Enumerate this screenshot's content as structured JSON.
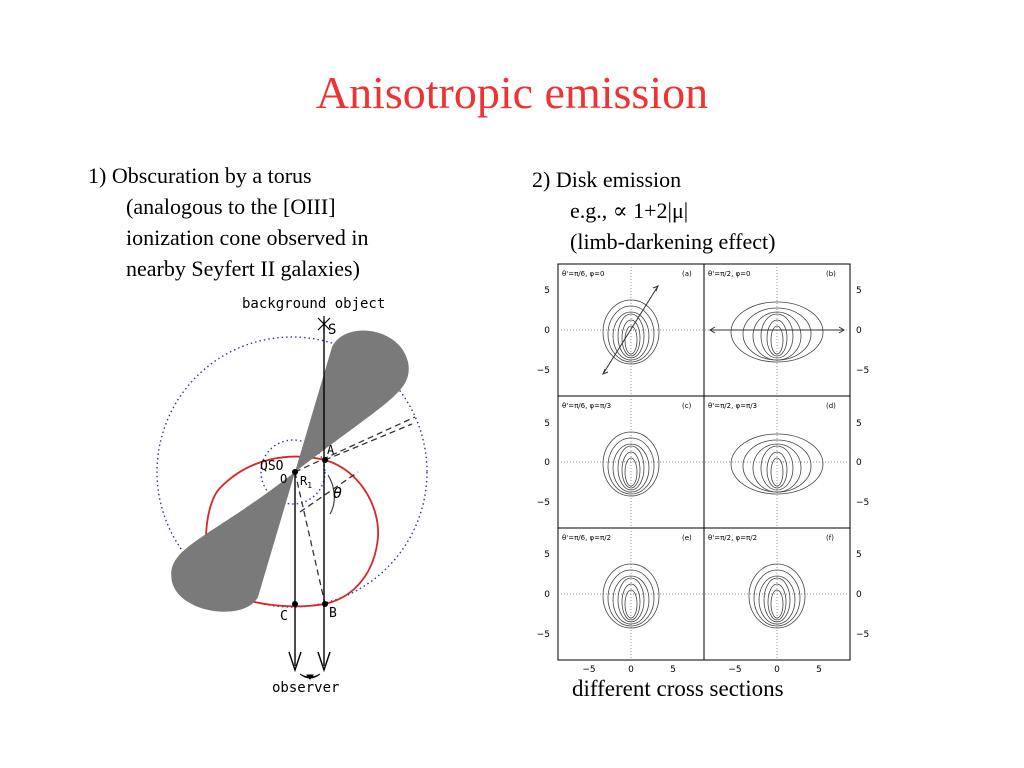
{
  "slide": {
    "title": "Anisotropic emission",
    "left": {
      "line1": "1) Obscuration by a torus",
      "line2": "(analogous to the [OIII]",
      "line3": "ionization cone observed in",
      "line4": "nearby Seyfert II galaxies)"
    },
    "right": {
      "line1": "2) Disk emission",
      "line2": "e.g., ∝ 1+2|μ|",
      "line3": "(limb-darkening effect)"
    },
    "caption": "different cross sections"
  },
  "diagram": {
    "label_background": "background object",
    "label_observer": "observer",
    "label_S": "S",
    "label_QSO": "QSO",
    "label_O": "O",
    "label_A": "A",
    "label_R1": "R",
    "label_R1_sub": "1",
    "label_theta": "θ",
    "label_B": "B",
    "label_C": "C",
    "colors": {
      "cone": "#7a7a7a",
      "curve": "#dd2222",
      "circle": "#3333bb"
    }
  },
  "panels": {
    "a": {
      "label": "θ'=π/6, φ=0",
      "tag": "(a)"
    },
    "b": {
      "label": "θ'=π/2, φ=0",
      "tag": "(b)"
    },
    "c": {
      "label": "θ'=π/6, φ=π/3",
      "tag": "(c)"
    },
    "d": {
      "label": "θ'=π/2, φ=π/3",
      "tag": "(d)"
    },
    "e": {
      "label": "θ'=π/6, φ=π/2",
      "tag": "(e)"
    },
    "f": {
      "label": "θ'=π/2, φ=π/2",
      "tag": "(f)"
    },
    "y_ticks": [
      "5",
      "0",
      "−5"
    ],
    "x_ticks": [
      "−5",
      "0",
      "5"
    ]
  }
}
